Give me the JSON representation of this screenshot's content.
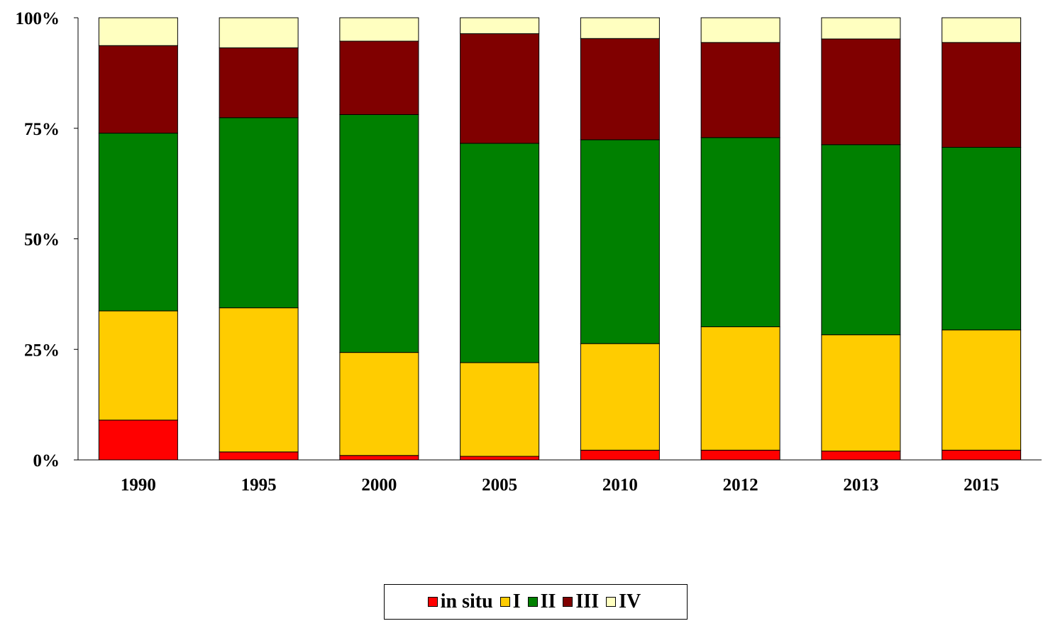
{
  "chart_data": {
    "type": "bar",
    "stacked": true,
    "percent": true,
    "categories": [
      "1990",
      "1995",
      "2000",
      "2005",
      "2010",
      "2012",
      "2013",
      "2015"
    ],
    "series": [
      {
        "name": "in situ",
        "color": "#ff0000",
        "values": [
          9.0,
          1.8,
          1.0,
          0.8,
          2.2,
          2.2,
          2.0,
          2.2
        ]
      },
      {
        "name": "I",
        "color": "#ffcc00",
        "values": [
          24.7,
          32.6,
          23.3,
          21.2,
          24.1,
          27.9,
          26.3,
          27.2
        ]
      },
      {
        "name": "II",
        "color": "#008000",
        "values": [
          40.2,
          43.0,
          53.8,
          49.6,
          46.1,
          42.8,
          43.0,
          41.3
        ]
      },
      {
        "name": "III",
        "color": "#800000",
        "values": [
          19.8,
          15.8,
          16.6,
          24.8,
          22.9,
          21.5,
          23.9,
          23.7
        ]
      },
      {
        "name": "IV",
        "color": "#ffffc0",
        "values": [
          6.3,
          6.8,
          5.3,
          3.6,
          4.7,
          5.6,
          4.8,
          5.6
        ]
      }
    ],
    "y_ticks": [
      "0%",
      "25%",
      "50%",
      "75%",
      "100%"
    ],
    "y_tick_values": [
      0,
      25,
      50,
      75,
      100
    ],
    "ylim": [
      0,
      100
    ],
    "grid": false,
    "legend_position": "bottom"
  }
}
